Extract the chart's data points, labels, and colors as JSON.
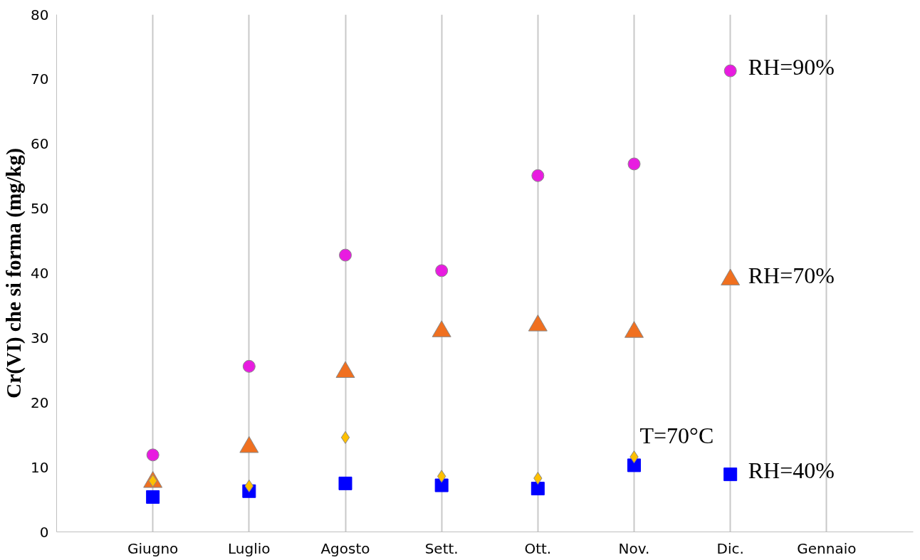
{
  "chart_data": {
    "type": "scatter",
    "ylabel": "Cr(VI) che si forma (mg/kg)",
    "categories": [
      "Giugno",
      "Luglio",
      "Agosto",
      "Sett.",
      "Ott.",
      "Nov.",
      "Dic.",
      "Gennaio"
    ],
    "ylim": [
      0,
      80
    ],
    "yticks": [
      0,
      10,
      20,
      30,
      40,
      50,
      60,
      70,
      80
    ],
    "grid": "x",
    "series": [
      {
        "name": "RH=90%",
        "color": "#e81ce0",
        "marker": "circle",
        "values": [
          11.9,
          25.6,
          42.8,
          40.4,
          55.1,
          56.9,
          71.3,
          null
        ]
      },
      {
        "name": "RH=70%",
        "color": "#f07020",
        "marker": "triangle",
        "values": [
          7.7,
          13.1,
          24.7,
          31.0,
          31.9,
          30.9,
          39.0,
          null
        ]
      },
      {
        "name": "RH=40%",
        "color": "#0000ff",
        "marker": "square",
        "values": [
          5.4,
          6.3,
          7.5,
          7.2,
          6.7,
          10.3,
          8.9,
          null
        ]
      },
      {
        "name": "T=70°C",
        "color": "#ffc000",
        "marker": "diamond",
        "values": [
          7.9,
          7.1,
          14.6,
          8.6,
          8.3,
          11.6,
          null,
          null
        ]
      }
    ]
  }
}
